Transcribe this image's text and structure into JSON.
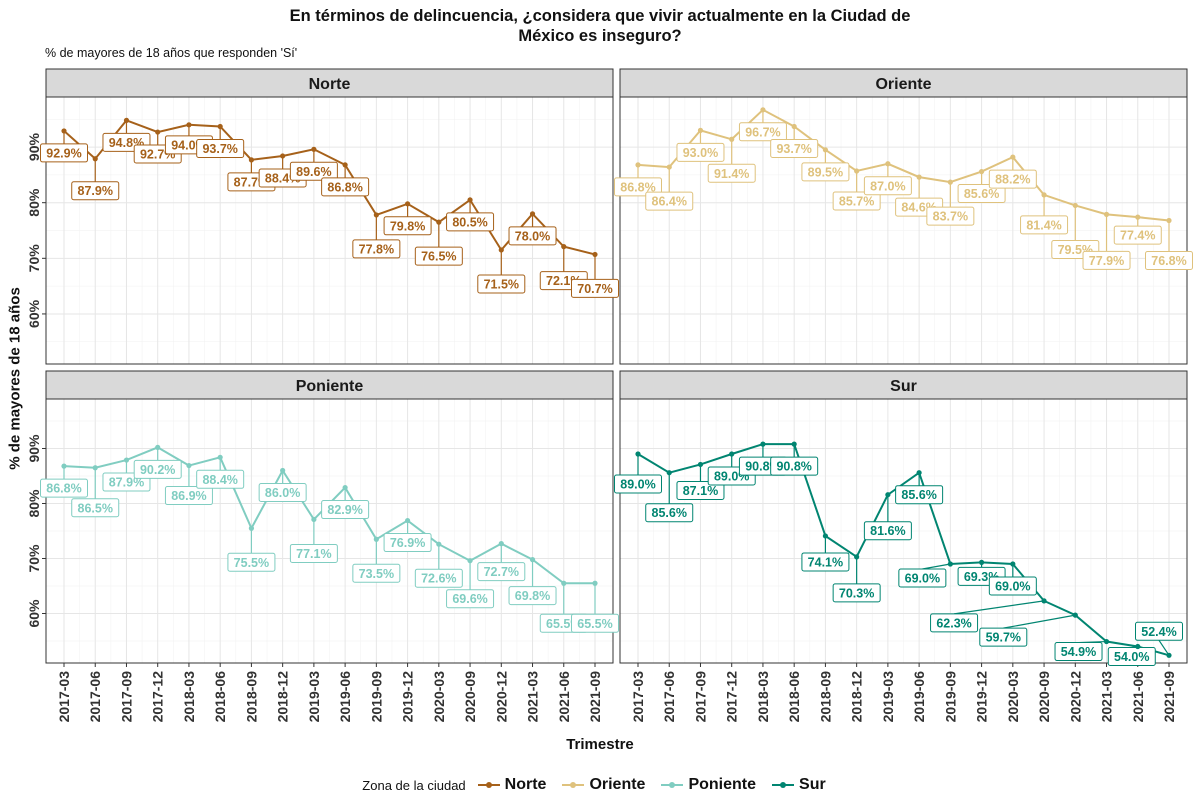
{
  "title_line1": "En términos de delincuencia, ¿considera que vivir actualmente en la Ciudad de",
  "title_line2": "México es inseguro?",
  "subtitle": "% de mayores de 18 años que responden 'Sí'",
  "legend": {
    "title": "Zona de la ciudad",
    "items": [
      {
        "name": "Norte",
        "color": "#A6611A"
      },
      {
        "name": "Oriente",
        "color": "#DFC27D"
      },
      {
        "name": "Poniente",
        "color": "#80CDC1"
      },
      {
        "name": "Sur",
        "color": "#018571"
      }
    ]
  },
  "chart_data": {
    "type": "line",
    "title": "En términos de delincuencia, ¿considera que vivir actualmente en la Ciudad de México es inseguro?",
    "subtitle": "% de mayores de 18 años que responden 'Sí'",
    "xlabel": "Trimestre",
    "ylabel": "% de mayores de 18 años",
    "ylim": [
      51,
      99
    ],
    "yticks": [
      60,
      70,
      80,
      90
    ],
    "ytick_labels": [
      "60%",
      "70%",
      "80%",
      "90%"
    ],
    "grid": true,
    "legend_position": "bottom",
    "facets": [
      "Norte",
      "Oriente",
      "Poniente",
      "Sur"
    ],
    "categories": [
      "2017-03",
      "2017-06",
      "2017-09",
      "2017-12",
      "2018-03",
      "2018-06",
      "2018-09",
      "2018-12",
      "2019-03",
      "2019-06",
      "2019-09",
      "2019-12",
      "2020-03",
      "2020-09",
      "2020-12",
      "2021-03",
      "2021-06",
      "2021-09"
    ],
    "series": [
      {
        "name": "Norte",
        "color": "#A6611A",
        "values": [
          92.9,
          87.9,
          94.8,
          92.7,
          94.0,
          93.7,
          87.7,
          88.4,
          89.6,
          86.8,
          77.8,
          79.8,
          76.5,
          80.5,
          71.5,
          78.0,
          72.1,
          70.7
        ]
      },
      {
        "name": "Oriente",
        "color": "#DFC27D",
        "values": [
          86.8,
          86.4,
          93.0,
          91.4,
          96.7,
          93.7,
          89.5,
          85.7,
          87.0,
          84.6,
          83.7,
          85.6,
          88.2,
          81.4,
          79.5,
          77.9,
          77.4,
          76.8
        ]
      },
      {
        "name": "Poniente",
        "color": "#80CDC1",
        "values": [
          86.8,
          86.5,
          87.9,
          90.2,
          86.9,
          88.4,
          75.5,
          86.0,
          77.1,
          82.9,
          73.5,
          76.9,
          72.6,
          69.6,
          72.7,
          69.8,
          65.5,
          65.5
        ]
      },
      {
        "name": "Sur",
        "color": "#018571",
        "values": [
          89.0,
          85.6,
          87.1,
          89.0,
          90.8,
          90.8,
          74.1,
          70.3,
          81.6,
          85.6,
          69.0,
          69.3,
          69.0,
          62.3,
          59.7,
          54.9,
          54.0,
          52.4
        ]
      }
    ]
  }
}
